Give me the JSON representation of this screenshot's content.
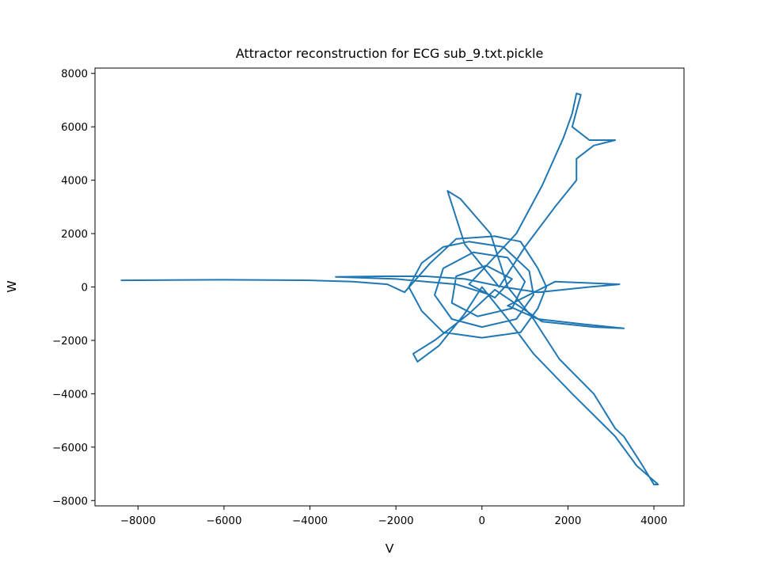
{
  "chart_data": {
    "type": "line",
    "title": "Attractor reconstruction for ECG sub_9.txt.pickle",
    "xlabel": "V",
    "ylabel": "W",
    "xlim": [
      -9000,
      4700
    ],
    "ylim": [
      -8200,
      8200
    ],
    "xticks": [
      -8000,
      -6000,
      -4000,
      -2000,
      0,
      2000,
      4000
    ],
    "yticks": [
      -8000,
      -6000,
      -4000,
      -2000,
      0,
      2000,
      4000,
      6000,
      8000
    ],
    "xtick_labels": [
      "−8000",
      "−6000",
      "−4000",
      "−2000",
      "0",
      "2000",
      "4000"
    ],
    "ytick_labels": [
      "−8000",
      "−6000",
      "−4000",
      "−2000",
      "0",
      "2000",
      "4000",
      "6000",
      "8000"
    ],
    "grid": false,
    "color": "#1f77b4",
    "series": [
      {
        "name": "",
        "points": [
          [
            -8400,
            250
          ],
          [
            -6000,
            270
          ],
          [
            -4000,
            250
          ],
          [
            -3000,
            200
          ],
          [
            -2200,
            100
          ],
          [
            -1800,
            -200
          ],
          [
            -1200,
            900
          ],
          [
            -600,
            1800
          ],
          [
            300,
            1900
          ],
          [
            900,
            1700
          ],
          [
            1300,
            700
          ],
          [
            1500,
            0
          ],
          [
            1300,
            -800
          ],
          [
            900,
            -1700
          ],
          [
            0,
            -1900
          ],
          [
            -900,
            -1700
          ],
          [
            -1400,
            -900
          ],
          [
            -1700,
            0
          ],
          [
            -1400,
            900
          ],
          [
            -900,
            1500
          ],
          [
            -300,
            1700
          ],
          [
            500,
            1500
          ],
          [
            1100,
            600
          ],
          [
            1200,
            -300
          ],
          [
            800,
            -1200
          ],
          [
            0,
            -1500
          ],
          [
            -700,
            -1200
          ],
          [
            -1100,
            -300
          ],
          [
            -900,
            700
          ],
          [
            -200,
            1300
          ],
          [
            600,
            1100
          ],
          [
            1000,
            200
          ],
          [
            700,
            -800
          ],
          [
            -100,
            -1100
          ],
          [
            -700,
            -600
          ],
          [
            -600,
            400
          ],
          [
            100,
            800
          ],
          [
            700,
            300
          ],
          [
            300,
            -400
          ],
          [
            -300,
            100
          ],
          [
            800,
            2000
          ],
          [
            1400,
            3800
          ],
          [
            1900,
            5600
          ],
          [
            2100,
            6500
          ],
          [
            2200,
            7250
          ],
          [
            2300,
            7200
          ],
          [
            2100,
            6000
          ],
          [
            2500,
            5500
          ],
          [
            3100,
            5500
          ],
          [
            2600,
            5300
          ],
          [
            2200,
            4800
          ],
          [
            2200,
            4000
          ],
          [
            1700,
            3000
          ],
          [
            1000,
            1500
          ],
          [
            400,
            0
          ],
          [
            -400,
            1600
          ],
          [
            -800,
            3600
          ],
          [
            -500,
            3300
          ],
          [
            200,
            2000
          ],
          [
            600,
            0
          ],
          [
            1200,
            -1200
          ],
          [
            1800,
            -2700
          ],
          [
            2600,
            -4000
          ],
          [
            3100,
            -5300
          ],
          [
            3300,
            -5600
          ],
          [
            3700,
            -6600
          ],
          [
            4000,
            -7400
          ],
          [
            4100,
            -7400
          ],
          [
            3600,
            -6700
          ],
          [
            3100,
            -5600
          ],
          [
            2100,
            -4000
          ],
          [
            1200,
            -2500
          ],
          [
            600,
            -1200
          ],
          [
            0,
            0
          ],
          [
            -400,
            -1000
          ],
          [
            -1000,
            -2200
          ],
          [
            -1500,
            -2800
          ],
          [
            -1600,
            -2500
          ],
          [
            -1100,
            -2000
          ],
          [
            -300,
            -1000
          ],
          [
            300,
            -100
          ],
          [
            1400,
            -1300
          ],
          [
            2600,
            -1500
          ],
          [
            3300,
            -1550
          ],
          [
            2400,
            -1400
          ],
          [
            1300,
            -1200
          ],
          [
            600,
            -700
          ],
          [
            1700,
            200
          ],
          [
            3200,
            100
          ],
          [
            2500,
            0
          ],
          [
            1300,
            -200
          ],
          [
            500,
            0
          ],
          [
            -400,
            300
          ],
          [
            -1300,
            400
          ],
          [
            -2300,
            400
          ],
          [
            -3400,
            380
          ],
          [
            -2000,
            300
          ],
          [
            -600,
            100
          ],
          [
            200,
            -300
          ]
        ]
      }
    ]
  }
}
